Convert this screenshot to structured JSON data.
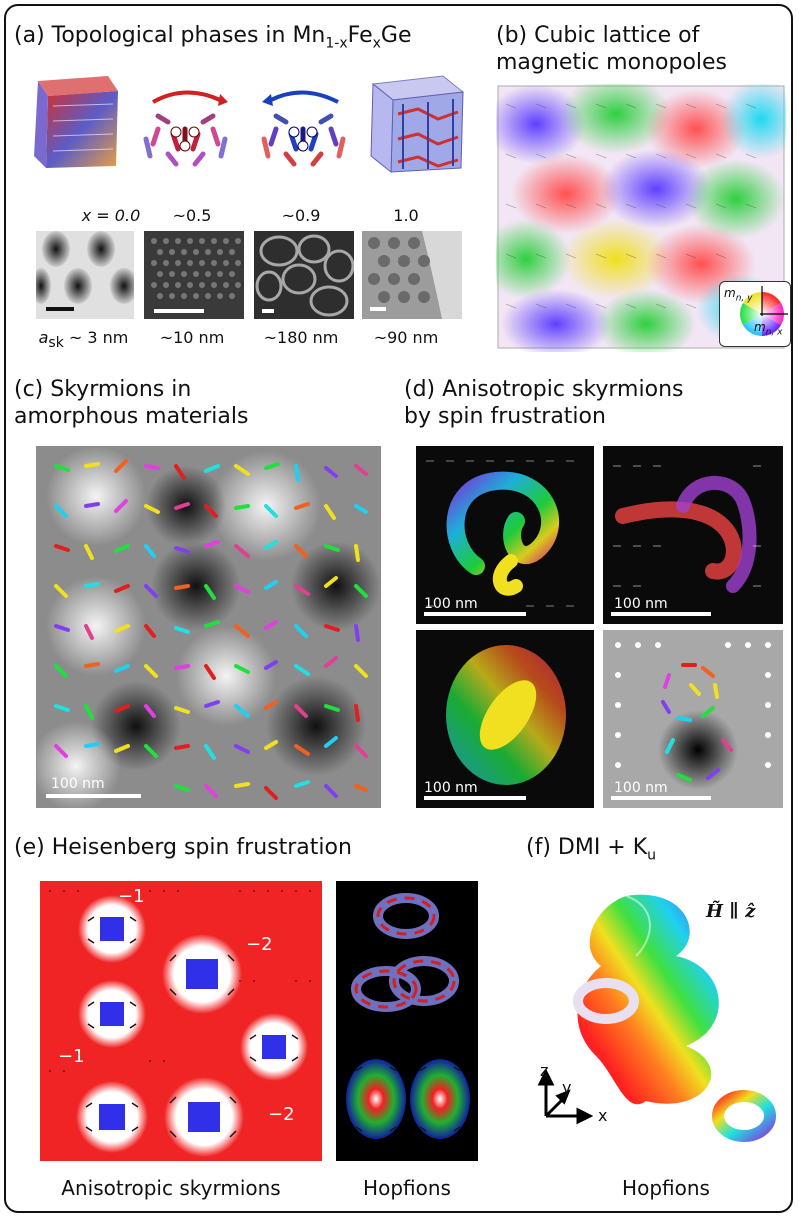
{
  "panel_a": {
    "title_prefix": "(a) Topological phases in Mn",
    "title_sub1": "1-x",
    "title_mid": "Fe",
    "title_sub2": "x",
    "title_suffix": "Ge",
    "compositions": [
      "x = 0.0",
      "~0.5",
      "~0.9",
      "1.0"
    ],
    "lattice_sizes": [
      "~10 nm",
      "~180 nm",
      "~90 nm"
    ],
    "first_size_var": "a",
    "first_size_sub": "sk",
    "first_size_value": " ~ 3 nm"
  },
  "panel_b": {
    "title_line1": "(b) Cubic lattice of",
    "title_line2": "magnetic monopoles",
    "legend_y": "m",
    "legend_y_sub": "n, y",
    "legend_x": "m",
    "legend_x_sub": "n, x"
  },
  "panel_c": {
    "title_line1": "(c) Skyrmions in",
    "title_line2": "amorphous materials",
    "scale": "100 nm"
  },
  "panel_d": {
    "title_line1": "(d) Anisotropic skyrmions",
    "title_line2": "by spin frustration",
    "scales": [
      "100 nm",
      "100 nm",
      "100 nm",
      "100 nm"
    ]
  },
  "panel_e": {
    "title": "(e) Heisenberg spin frustration",
    "charges": [
      "−1",
      "−2",
      "−1",
      "−2"
    ],
    "caption_left": "Anisotropic skyrmions",
    "caption_right": "Hopfions"
  },
  "panel_f": {
    "title_main": "(f) DMI + K",
    "title_sub": "u",
    "field_label": "H̃ ∥ ẑ",
    "axes": [
      "z",
      "y",
      "x"
    ],
    "caption": "Hopfions"
  }
}
